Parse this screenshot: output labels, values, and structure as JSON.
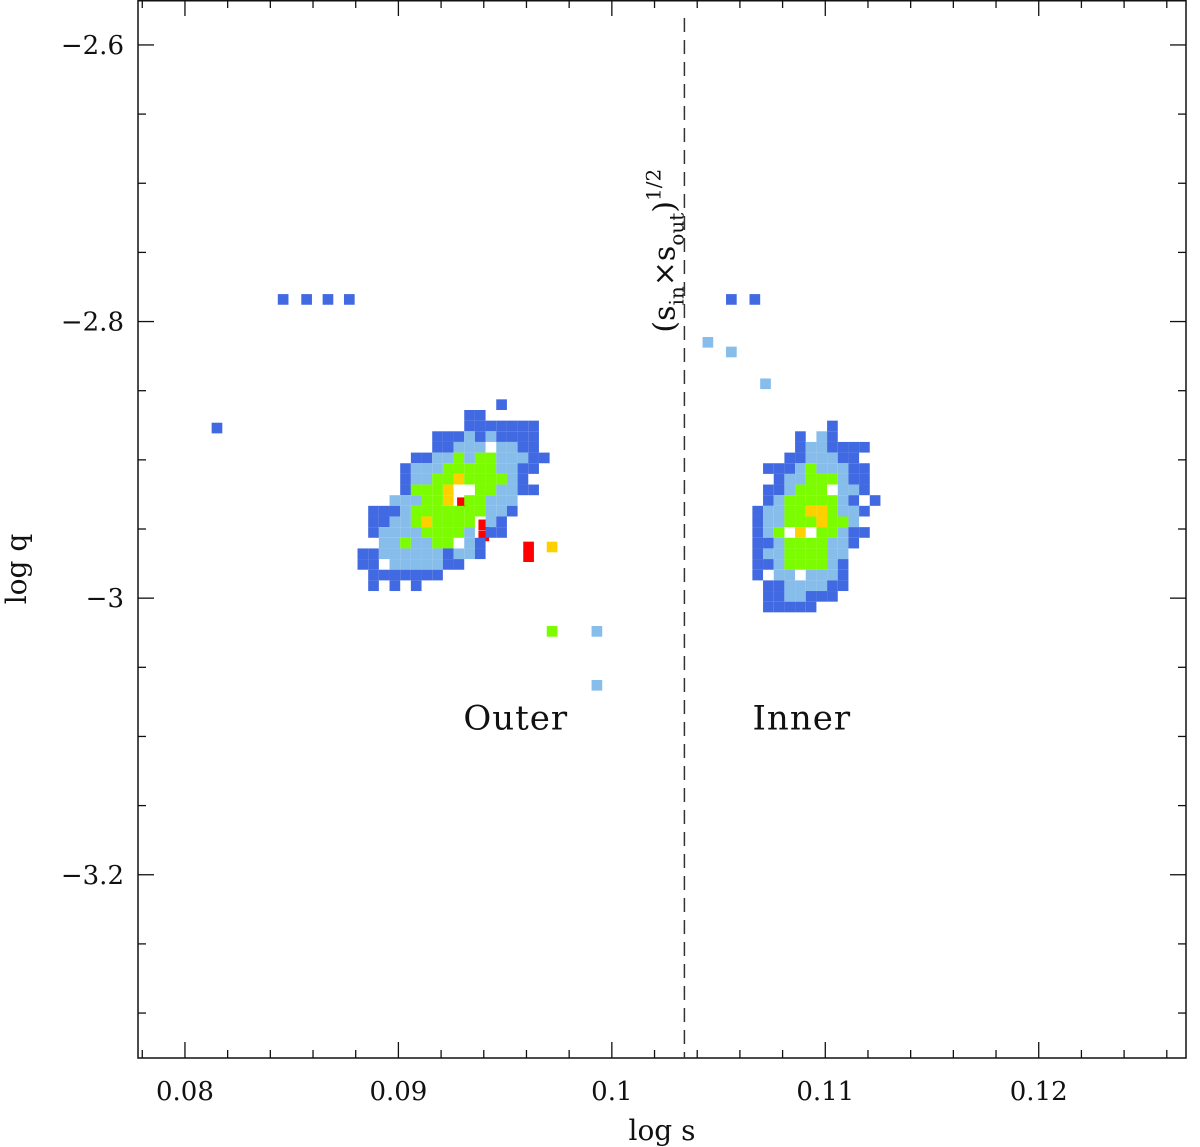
{
  "chart_data": {
    "type": "heatmap",
    "title": "",
    "xlabel": "log s",
    "ylabel": "log q",
    "xlim": [
      0.0778,
      0.1269
    ],
    "ylim": [
      -3.3325,
      -2.5675
    ],
    "x_major_ticks": [
      0.08,
      0.09,
      0.1,
      0.11,
      0.12
    ],
    "x_tick_labels": [
      "0.08",
      "0.09",
      "0.1",
      "0.11",
      "0.12"
    ],
    "x_minor_step": 0.002,
    "y_major_ticks": [
      -2.6,
      -2.8,
      -3.0,
      -3.2
    ],
    "y_tick_labels": [
      "−2.6",
      "−2.8",
      "−3",
      "−3.2"
    ],
    "y_minor_step": 0.05,
    "grid": false,
    "bin_size": {
      "log_s": 0.0005,
      "log_q": 0.0077
    },
    "divider": {
      "log_s": 0.1034,
      "style": "dashed"
    },
    "annotation": {
      "base": "(s",
      "sub_in": "in",
      "times": "×s",
      "sub_out": "out",
      "close": ")",
      "sup": "1/2"
    },
    "region_labels": [
      {
        "text": "Outer",
        "log_s": 0.0955,
        "log_q": -3.095
      },
      {
        "text": "Inner",
        "log_s": 0.1089,
        "log_q": -3.095
      }
    ],
    "levels": [
      {
        "level": 1,
        "color": "#4169E1",
        "meaning": "lowest density"
      },
      {
        "level": 2,
        "color": "#87BDEA"
      },
      {
        "level": 3,
        "color": "#7CFC00"
      },
      {
        "level": 4,
        "color": "#FFD000"
      },
      {
        "level": 5,
        "color": "#FF0000",
        "meaning": "highest density"
      }
    ],
    "clusters": [
      {
        "name": "Outer",
        "points": [
          {
            "log_s": 0.0815,
            "log_q": -2.877,
            "level": 1
          },
          {
            "log_s": 0.0846,
            "log_q": -2.784,
            "level": 1
          },
          {
            "log_s": 0.0857,
            "log_q": -2.784,
            "level": 1
          },
          {
            "log_s": 0.0867,
            "log_q": -2.784,
            "level": 1
          },
          {
            "log_s": 0.0877,
            "log_q": -2.784,
            "level": 1
          },
          {
            "log_s": 0.093,
            "log_q": -2.931,
            "level": 5
          },
          {
            "log_s": 0.094,
            "log_q": -2.947,
            "level": 5
          },
          {
            "log_s": 0.094,
            "log_q": -2.955,
            "level": 5
          },
          {
            "log_s": 0.0961,
            "log_q": -2.963,
            "level": 5
          },
          {
            "log_s": 0.0961,
            "log_q": -2.97,
            "level": 5
          },
          {
            "log_s": 0.0972,
            "log_q": -2.963,
            "level": 4
          },
          {
            "log_s": 0.0972,
            "log_q": -3.024,
            "level": 3
          },
          {
            "log_s": 0.0993,
            "log_q": -3.024,
            "level": 2
          },
          {
            "log_s": 0.0993,
            "log_q": -3.063,
            "level": 2
          }
        ],
        "blob": {
          "center_log_s": 0.0925,
          "center_log_q": -2.93,
          "spread_along": 0.08,
          "spread_across": 0.042,
          "angle_deg": -45
        }
      },
      {
        "name": "Inner",
        "points": [
          {
            "log_s": 0.1056,
            "log_q": -2.784,
            "level": 1
          },
          {
            "log_s": 0.1067,
            "log_q": -2.784,
            "level": 1
          },
          {
            "log_s": 0.1045,
            "log_q": -2.815,
            "level": 2
          },
          {
            "log_s": 0.1056,
            "log_q": -2.822,
            "level": 2
          },
          {
            "log_s": 0.1072,
            "log_q": -2.845,
            "level": 2
          }
        ],
        "blob": {
          "center_log_s": 0.1093,
          "center_log_q": -2.945,
          "spread_along": 0.072,
          "spread_across": 0.04,
          "angle_deg": -76
        }
      }
    ]
  }
}
